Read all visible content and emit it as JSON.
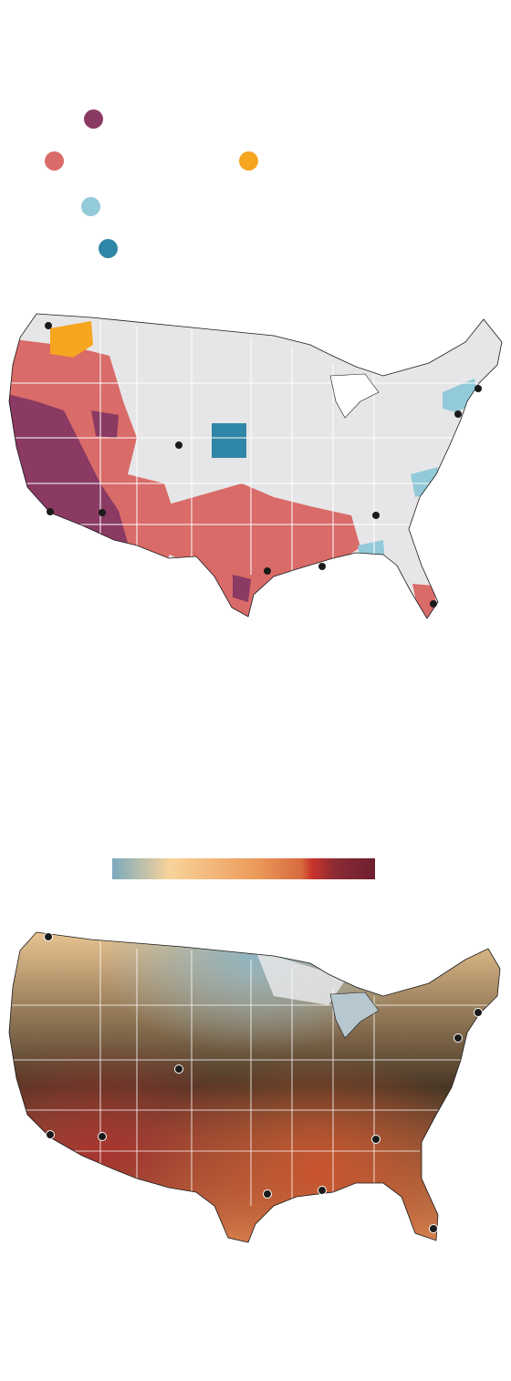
{
  "legend": {
    "categories": [
      {
        "key": "dark-purple",
        "color": "#8a3a63"
      },
      {
        "key": "coral",
        "color": "#d96b68"
      },
      {
        "key": "orange",
        "color": "#f6a51f"
      },
      {
        "key": "light-blue",
        "color": "#93cad9"
      },
      {
        "key": "teal",
        "color": "#2f86a6"
      }
    ]
  },
  "colors": {
    "land": "#e6e6e8",
    "border": "#ffffff",
    "outline": "#1a1a1a",
    "city": "#1a1a1a"
  },
  "scale": {
    "stops": [
      "#7aa9bd",
      "#f9d39a",
      "#ec9a5a",
      "#d76a3e",
      "#c9332a",
      "#6e1f2e"
    ]
  },
  "cities": [
    {
      "name": "seattle"
    },
    {
      "name": "los-angeles"
    },
    {
      "name": "phoenix"
    },
    {
      "name": "denver"
    },
    {
      "name": "houston"
    },
    {
      "name": "new-orleans"
    },
    {
      "name": "atlanta"
    },
    {
      "name": "miami"
    },
    {
      "name": "new-york"
    },
    {
      "name": "boston"
    }
  ]
}
